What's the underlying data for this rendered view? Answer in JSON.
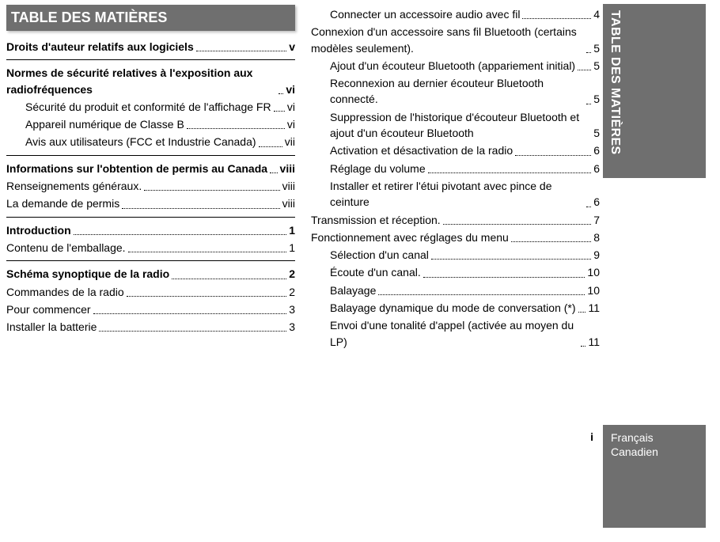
{
  "title": "TABLE DES MATIÈRES",
  "sideTab": "TABLE DES MATIÈRES",
  "pageNum": "i",
  "lang1": "Français",
  "lang2": "Canadien",
  "col1": [
    {
      "type": "section",
      "label": "Droits d'auteur relatifs aux logiciels",
      "page": "v"
    },
    {
      "type": "section",
      "label": "Normes de sécurité relatives à l'exposition aux radiofréquences",
      "page": "vi"
    },
    {
      "type": "indent",
      "label": "Sécurité du produit et conformité de l'affichage FR",
      "page": "vi"
    },
    {
      "type": "indent",
      "label": "Appareil numérique de Classe B",
      "page": "vi"
    },
    {
      "type": "indent",
      "label": "Avis aux utilisateurs (FCC et Industrie Canada)",
      "page": "vii"
    },
    {
      "type": "section",
      "label": "Informations sur l'obtention de permis au Canada",
      "page": "viii"
    },
    {
      "type": "plain",
      "label": "Renseignements généraux.",
      "page": "viii"
    },
    {
      "type": "plain",
      "label": "La demande de permis",
      "page": "viii"
    },
    {
      "type": "section",
      "label": "Introduction",
      "page": "1"
    },
    {
      "type": "plain",
      "label": "Contenu de l'emballage.",
      "page": "1"
    },
    {
      "type": "section",
      "label": "Schéma synoptique de la radio",
      "page": "2"
    },
    {
      "type": "plain",
      "label": "Commandes de la radio",
      "page": "2"
    },
    {
      "type": "plain",
      "label": "Pour commencer",
      "page": "3"
    },
    {
      "type": "plain",
      "label": "Installer la batterie",
      "page": "3"
    }
  ],
  "col2": [
    {
      "type": "indent",
      "label": "Connecter un accessoire audio avec fil",
      "page": "4"
    },
    {
      "type": "plain",
      "label": "Connexion d'un accessoire sans fil Bluetooth (certains modèles seulement).",
      "page": "5"
    },
    {
      "type": "indent",
      "label": "Ajout d'un écouteur Bluetooth (appariement initial)",
      "page": "5"
    },
    {
      "type": "indent",
      "label": "Reconnexion au dernier écouteur Bluetooth connecté.",
      "page": "5"
    },
    {
      "type": "indent",
      "label": "Suppression de l'historique d'écouteur Bluetooth et ajout d'un écouteur Bluetooth",
      "page": "5",
      "nodots": true
    },
    {
      "type": "indent",
      "label": "Activation et désactivation de la radio",
      "page": "6"
    },
    {
      "type": "indent",
      "label": "Réglage du volume",
      "page": "6"
    },
    {
      "type": "indent",
      "label": "Installer et retirer l'étui pivotant avec pince de ceinture",
      "page": "6"
    },
    {
      "type": "plain",
      "label": "Transmission et réception.",
      "page": "7"
    },
    {
      "type": "plain",
      "label": "Fonctionnement avec réglages du menu",
      "page": "8"
    },
    {
      "type": "indent",
      "label": "Sélection d'un canal",
      "page": "9"
    },
    {
      "type": "indent",
      "label": "Écoute d'un canal.",
      "page": "10"
    },
    {
      "type": "indent",
      "label": "Balayage",
      "page": "10"
    },
    {
      "type": "indent",
      "label": "Balayage dynamique du mode de conversation (*)",
      "page": "11"
    },
    {
      "type": "indent",
      "label": "Envoi d'une tonalité d'appel (activée au moyen du LP)",
      "page": "11"
    }
  ]
}
